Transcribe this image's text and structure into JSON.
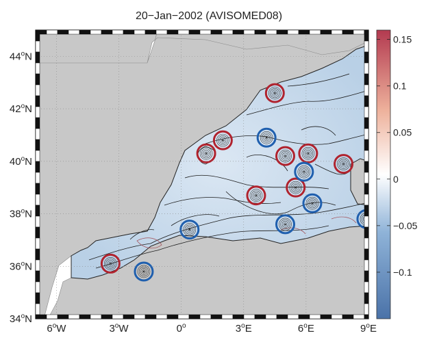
{
  "title": "20−Jan−2002 (AVISOMED08)",
  "map": {
    "lon_range": [
      -7,
      9
    ],
    "lat_range": [
      34,
      45
    ],
    "x_ticks": [
      {
        "value": -6,
        "deg": "6",
        "hem": "W"
      },
      {
        "value": -3,
        "deg": "3",
        "hem": "W"
      },
      {
        "value": 0,
        "deg": "0",
        "hem": ""
      },
      {
        "value": 3,
        "deg": "3",
        "hem": "E"
      },
      {
        "value": 6,
        "deg": "6",
        "hem": "E"
      },
      {
        "value": 9,
        "deg": "9",
        "hem": "E"
      }
    ],
    "y_ticks": [
      {
        "value": 34,
        "deg": "34",
        "hem": "N"
      },
      {
        "value": 36,
        "deg": "36",
        "hem": "N"
      },
      {
        "value": 38,
        "deg": "38",
        "hem": "N"
      },
      {
        "value": 40,
        "deg": "40",
        "hem": "N"
      },
      {
        "value": 42,
        "deg": "42",
        "hem": "N"
      },
      {
        "value": 44,
        "deg": "44",
        "hem": "N"
      }
    ],
    "grid": "dotted",
    "land_color": "#c8c8c8",
    "eddies_anticyclonic": [
      {
        "lon": 4.5,
        "lat": 42.6
      },
      {
        "lon": 1.2,
        "lat": 40.3
      },
      {
        "lon": 2.0,
        "lat": 40.8
      },
      {
        "lon": 5.0,
        "lat": 40.2
      },
      {
        "lon": 6.1,
        "lat": 40.3
      },
      {
        "lon": 7.8,
        "lat": 39.9
      },
      {
        "lon": 5.5,
        "lat": 39.0
      },
      {
        "lon": 3.6,
        "lat": 38.7
      },
      {
        "lon": -3.4,
        "lat": 36.1
      }
    ],
    "eddies_cyclonic": [
      {
        "lon": 4.1,
        "lat": 40.9
      },
      {
        "lon": 5.9,
        "lat": 39.6
      },
      {
        "lon": 6.3,
        "lat": 38.4
      },
      {
        "lon": 5.0,
        "lat": 37.6
      },
      {
        "lon": 0.4,
        "lat": 37.4
      },
      {
        "lon": -1.8,
        "lat": 35.8
      },
      {
        "lon": 8.9,
        "lat": 37.8
      }
    ]
  },
  "colorbar": {
    "range": [
      -0.15,
      0.16
    ],
    "ticks": [
      "0.15",
      "0.1",
      "0.05",
      "0",
      "−0.05",
      "−0.1"
    ],
    "tick_values": [
      0.15,
      0.1,
      0.05,
      0,
      -0.05,
      -0.1
    ],
    "colors": [
      "#4a72a8",
      "#8fb3d8",
      "#ffffff",
      "#eeb29c",
      "#b33a50"
    ]
  }
}
